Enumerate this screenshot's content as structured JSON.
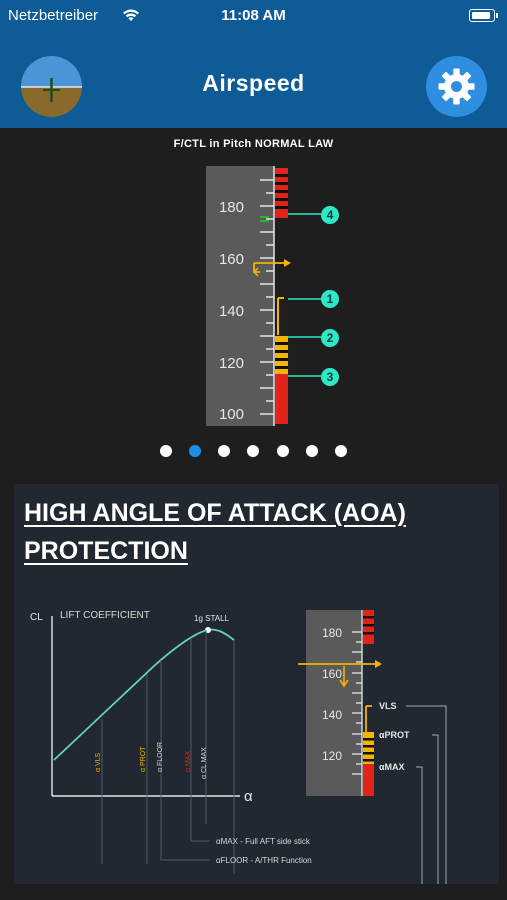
{
  "status_bar": {
    "carrier": "Netzbetreiber",
    "time": "11:08 AM"
  },
  "nav": {
    "title": "Airspeed",
    "left_icon": "attitude-indicator-icon",
    "right_icon": "gear-icon"
  },
  "pfd": {
    "caption": "F/CTL in Pitch NORMAL LAW",
    "tape_labels": [
      "180",
      "160",
      "140",
      "120",
      "100"
    ],
    "callouts": [
      "4",
      "1",
      "2",
      "3"
    ]
  },
  "pager": {
    "count": 7,
    "active_index": 1
  },
  "section": {
    "title_line1": "HIGH ANGLE OF ATTACK (AOA)",
    "title_line2": "PROTECTION"
  },
  "diagram": {
    "cl_label": "CL",
    "lift_label": "LIFT COEFFICIENT",
    "stall_label": "1g STALL",
    "alpha_axis_label": "α",
    "curve_markers": [
      "α VLS",
      "α PROT",
      "α FLOOR",
      "α MAX",
      "α CL MAX"
    ],
    "tape_labels": [
      "180",
      "160",
      "140",
      "120"
    ],
    "tape_callouts": [
      "VLS",
      "αPROT",
      "αMAX"
    ],
    "notes": [
      "αMAX - Full AFT side stick",
      "αFLOOR - A/THR Function"
    ]
  },
  "colors": {
    "nav_bar": "#0f5b96",
    "background": "#1e1e1e",
    "panel": "#212831",
    "red_band": "#e2231a",
    "amber": "#f5b400",
    "cyan_callout": "#2ee6c8",
    "curve": "#5fd3c4",
    "active_dot": "#1e8fe6",
    "gear_button": "#2e8ee0"
  }
}
